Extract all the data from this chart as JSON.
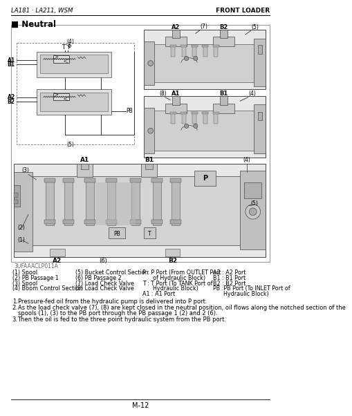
{
  "bg_color": "#ffffff",
  "header_left": "LA181 · LA211, WSM",
  "header_right": "FRONT LOADER",
  "section_title": "■ Neutral",
  "figure_label": "3UFAAACLP011A",
  "legend_col1": [
    "(1) Spool",
    "(2) PB Passage 1",
    "(3) Spool",
    "(4) Boom Control Section"
  ],
  "legend_col2": [
    "(5) Bucket Control Section",
    "(6) PB Passage 2",
    "(7) Load Check Valve",
    "(8) Load Check Valve"
  ],
  "legend_col3": [
    "P : P Port (From OUTLET Port",
    "      of Hydraulic Block)",
    "T : T Port (To TANK Port of",
    "      Hydraulic Block)",
    "A1 : A1 Port"
  ],
  "legend_col4": [
    "A2 : A2 Port",
    "B1 : B1 Port",
    "B2 : B2 Port",
    "PB :PB Port (To INLET Port of",
    "      Hydraulic Block)"
  ],
  "note1": "Pressure-fed oil from the hydraulic pump is delivered into P port.",
  "note2a": "As the load check valve (7), (8) are kept closed in the neutral position, oil flows along the notched section of the",
  "note2b": "spools (1), (3) to the PB port through the PB passage 1 (2) and 2 (6).",
  "note3": "Then the oil is fed to the three point hydraulic system from the PB port.",
  "page_number": "M-12",
  "line_color": "#000000",
  "text_color": "#000000",
  "gray_light": "#d8d8d8",
  "gray_mid": "#aaaaaa",
  "gray_dark": "#666666",
  "border_color": "#555555",
  "diagram_bg": "#f0f0f0"
}
